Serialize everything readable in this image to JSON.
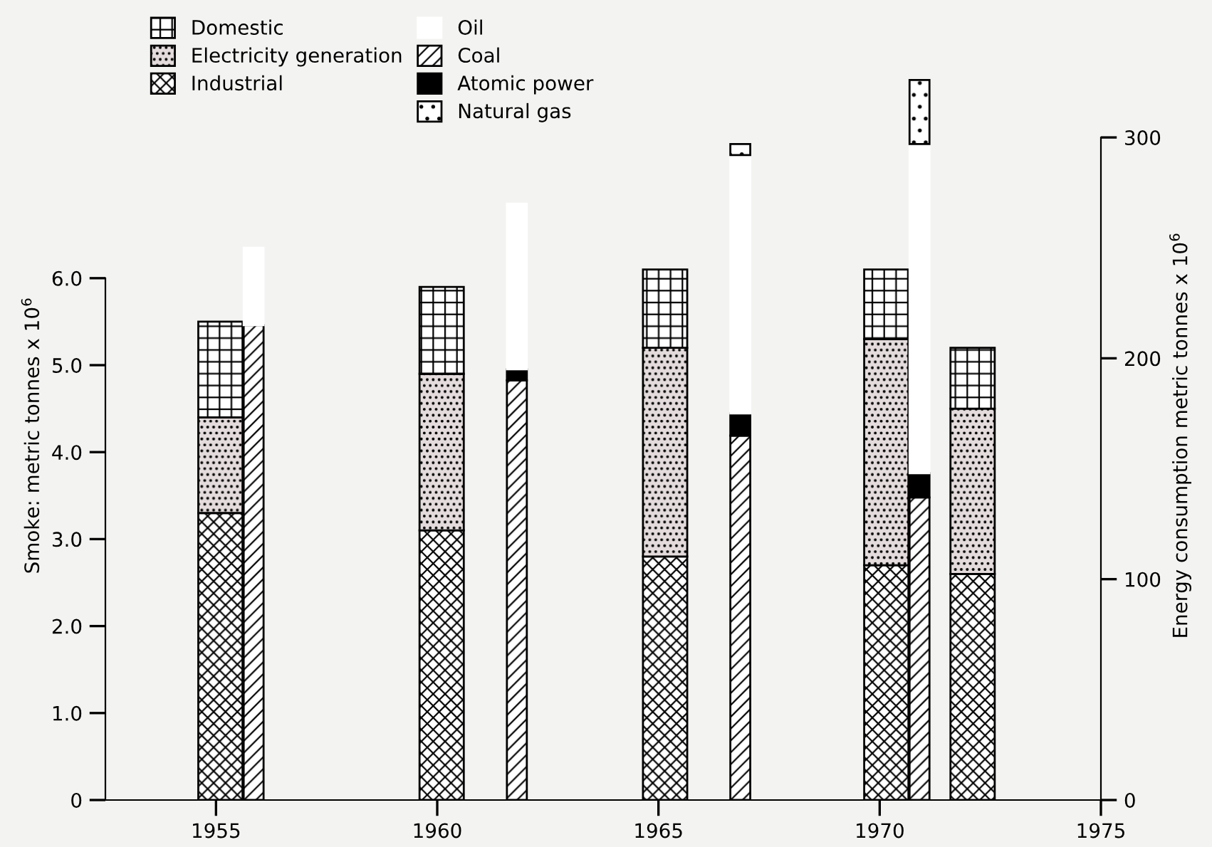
{
  "chart_data": {
    "type": "bar",
    "stacked": true,
    "xlim": [
      1952.5,
      1975
    ],
    "xticks": [
      1955,
      1960,
      1965,
      1970,
      1975
    ],
    "ylabel": "Smoke: metric tonnes x 10$^{6}$",
    "y2label": "Energy consumption metric tonnes x 10$^{6}$",
    "ylim": [
      0,
      8.38
    ],
    "yticks": [
      0,
      {
        "value": 1,
        "label": "1.0"
      },
      {
        "value": 2,
        "label": "2.0"
      },
      {
        "value": 3,
        "label": "3.0"
      },
      {
        "value": 4,
        "label": "4.0"
      },
      {
        "value": 5,
        "label": "5.0"
      },
      {
        "value": 6,
        "label": "6.0"
      }
    ],
    "y2lim": [
      0,
      330
    ],
    "y2ticks": [
      0,
      100,
      200,
      300
    ],
    "grid": false,
    "legend": "top left",
    "series": [
      {
        "name": "Industrial",
        "color": "#000000",
        "x": [
          1955.1,
          1960.1,
          1965.15,
          1970.15,
          1972.1
        ],
        "values": [
          3.3,
          3.1,
          2.8,
          2.7,
          2.6
        ]
      },
      {
        "name": "Electricity generation",
        "color": "#000000",
        "x": [
          1955.1,
          1960.1,
          1965.15,
          1970.15,
          1972.1
        ],
        "values": [
          1.1,
          1.8,
          2.4,
          2.6,
          1.9
        ]
      },
      {
        "name": "Domestic",
        "color": "#000000",
        "x": [
          1955.1,
          1960.1,
          1965.15,
          1970.15,
          1972.1
        ],
        "values": [
          1.1,
          1.0,
          0.9,
          0.8,
          0.7
        ]
      },
      {
        "name": "Coal",
        "color": "#000000",
        "axis": "y2",
        "x": [
          1955.85,
          1961.8,
          1966.85,
          1970.9
        ],
        "values": [
          215,
          190,
          165,
          137
        ]
      },
      {
        "name": "Atomic power",
        "color": "#000000",
        "axis": "y2",
        "x": [
          1955.85,
          1961.8,
          1966.85,
          1970.9
        ],
        "values": [
          0,
          5,
          10,
          11
        ]
      },
      {
        "name": "Oil",
        "color": "#ffffff",
        "axis": "y2",
        "x": [
          1955.85,
          1961.8,
          1966.85,
          1970.9
        ],
        "values": [
          35,
          75,
          117,
          149
        ]
      },
      {
        "name": "Natural gas",
        "color": "#000000",
        "axis": "y2",
        "x": [
          1955.85,
          1961.8,
          1966.85,
          1970.9
        ],
        "values": [
          0,
          0,
          5,
          29
        ]
      }
    ]
  }
}
